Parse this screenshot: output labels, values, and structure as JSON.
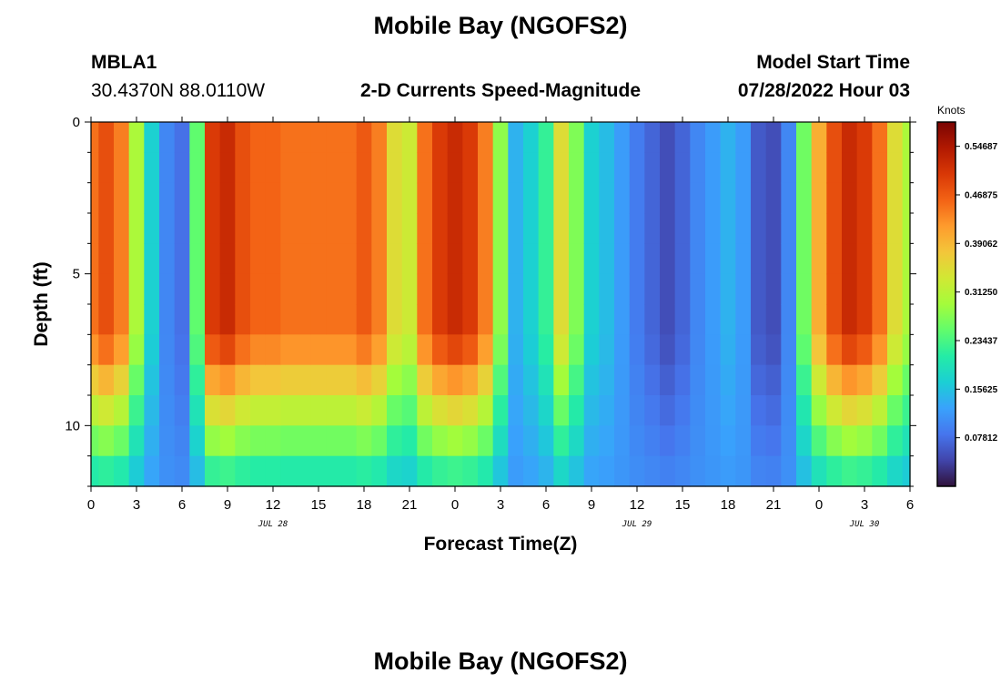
{
  "header": {
    "title": "Mobile Bay (NGOFS2)",
    "station": "MBLA1",
    "coords": "30.4370N  88.0110W",
    "subtitle": "2-D Currents Speed-Magnitude",
    "model_start_label": "Model Start Time",
    "model_start_value": "07/28/2022 Hour 03"
  },
  "footer": {
    "title": "Mobile Bay (NGOFS2)"
  },
  "chart_data": {
    "type": "heatmap",
    "title": "2-D Currents Speed-Magnitude",
    "xlabel": "Forecast Time(Z)",
    "ylabel": "Depth (ft)",
    "x_range_hours": [
      0,
      54
    ],
    "ylim": [
      0,
      12
    ],
    "y_reversed": true,
    "x_tick_labels": [
      "0",
      "3",
      "6",
      "9",
      "12",
      "15",
      "18",
      "21",
      "0",
      "3",
      "6",
      "9",
      "12",
      "15",
      "18",
      "21",
      "0",
      "3",
      "6"
    ],
    "y_tick_labels": [
      "0",
      "5",
      "10"
    ],
    "date_labels": [
      {
        "hour": 12,
        "text": "JUL 28"
      },
      {
        "hour": 36,
        "text": "JUL 29"
      },
      {
        "hour": 51,
        "text": "JUL 30"
      }
    ],
    "depth_bins": 12,
    "time_hours": [
      0,
      1,
      2,
      3,
      4,
      5,
      6,
      7,
      8,
      9,
      10,
      11,
      12,
      13,
      14,
      15,
      16,
      17,
      18,
      19,
      20,
      21,
      22,
      23,
      24,
      25,
      26,
      27,
      28,
      29,
      30,
      31,
      32,
      33,
      34,
      35,
      36,
      37,
      38,
      39,
      40,
      41,
      42,
      43,
      44,
      45,
      46,
      47,
      48,
      49,
      50,
      51,
      52,
      53,
      54
    ],
    "surface_speed_knots": [
      0.45,
      0.48,
      0.44,
      0.3,
      0.17,
      0.1,
      0.08,
      0.25,
      0.5,
      0.52,
      0.48,
      0.46,
      0.46,
      0.45,
      0.45,
      0.45,
      0.45,
      0.45,
      0.47,
      0.44,
      0.35,
      0.33,
      0.45,
      0.5,
      0.52,
      0.5,
      0.44,
      0.28,
      0.14,
      0.17,
      0.22,
      0.35,
      0.27,
      0.17,
      0.15,
      0.12,
      0.09,
      0.07,
      0.05,
      0.07,
      0.1,
      0.12,
      0.14,
      0.12,
      0.06,
      0.05,
      0.1,
      0.26,
      0.4,
      0.48,
      0.52,
      0.5,
      0.45,
      0.35,
      0.3
    ],
    "colorbar": {
      "unit_label": "Knots",
      "min": 0,
      "max": 0.5859,
      "ticks": [
        "0.54687",
        "0.46875",
        "0.39062",
        "0.31250",
        "0.23437",
        "0.15625",
        "0.07812"
      ],
      "colors": [
        "#30123b",
        "#4145ab",
        "#4675ed",
        "#39a2fc",
        "#1bcfd4",
        "#24eca6",
        "#61fc6c",
        "#a4fc3b",
        "#d1e834",
        "#f3c63a",
        "#fe9b2d",
        "#f36315",
        "#d93806",
        "#b11901",
        "#7a0403"
      ]
    }
  }
}
